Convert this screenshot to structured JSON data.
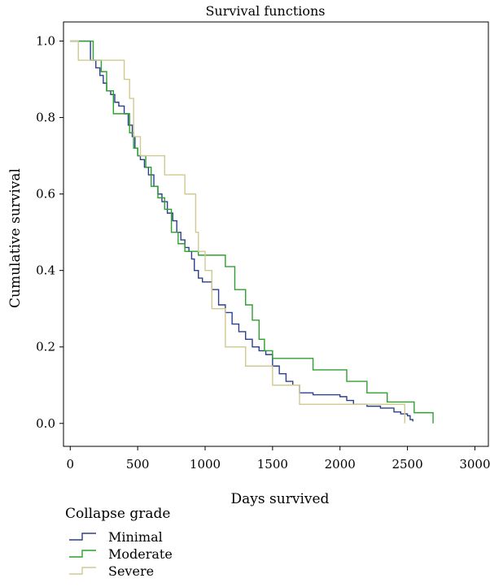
{
  "chart_data": {
    "type": "line",
    "step": true,
    "title": "Survival functions",
    "xlabel": "Days survived",
    "ylabel": "Cumulative survival",
    "xlim": [
      -50,
      3100
    ],
    "ylim": [
      -0.06,
      1.05
    ],
    "xticks": [
      0,
      500,
      1000,
      1500,
      2000,
      2500,
      3000
    ],
    "yticks": [
      0.0,
      0.2,
      0.4,
      0.6,
      0.8,
      1.0
    ],
    "xtick_labels": [
      "0",
      "500",
      "1000",
      "1500",
      "2000",
      "2500",
      "3000"
    ],
    "ytick_labels": [
      "0.0",
      "0.2",
      "0.4",
      "0.6",
      "0.8",
      "1.0"
    ],
    "grid": false,
    "legend": {
      "title": "Collapse grade",
      "position": "bottom-left"
    },
    "series": [
      {
        "name": "Minimal",
        "color": "#2b3f8c",
        "x": [
          0,
          150,
          190,
          220,
          245,
          270,
          300,
          330,
          360,
          400,
          430,
          460,
          480,
          500,
          520,
          550,
          580,
          620,
          650,
          680,
          720,
          760,
          790,
          820,
          850,
          880,
          900,
          920,
          950,
          980,
          1050,
          1100,
          1150,
          1200,
          1250,
          1300,
          1350,
          1400,
          1450,
          1500,
          1550,
          1600,
          1650,
          1700,
          1800,
          2000,
          2050,
          2100,
          2200,
          2300,
          2400,
          2450,
          2500,
          2520,
          2540
        ],
        "y": [
          1.0,
          0.95,
          0.93,
          0.91,
          0.89,
          0.87,
          0.86,
          0.84,
          0.83,
          0.81,
          0.78,
          0.75,
          0.72,
          0.7,
          0.69,
          0.67,
          0.65,
          0.62,
          0.6,
          0.58,
          0.55,
          0.53,
          0.5,
          0.48,
          0.46,
          0.45,
          0.43,
          0.4,
          0.38,
          0.37,
          0.35,
          0.31,
          0.29,
          0.26,
          0.24,
          0.22,
          0.2,
          0.19,
          0.18,
          0.15,
          0.13,
          0.11,
          0.1,
          0.08,
          0.075,
          0.07,
          0.06,
          0.05,
          0.045,
          0.04,
          0.03,
          0.025,
          0.02,
          0.01,
          0.005
        ]
      },
      {
        "name": "Moderate",
        "color": "#2ca02c",
        "x": [
          0,
          170,
          230,
          270,
          320,
          440,
          470,
          500,
          560,
          600,
          650,
          700,
          750,
          800,
          850,
          950,
          1150,
          1220,
          1300,
          1350,
          1400,
          1440,
          1500,
          1800,
          2050,
          2200,
          2350,
          2550,
          2690
        ],
        "y": [
          1.0,
          0.95,
          0.92,
          0.87,
          0.81,
          0.76,
          0.72,
          0.7,
          0.67,
          0.62,
          0.59,
          0.56,
          0.5,
          0.47,
          0.45,
          0.44,
          0.41,
          0.35,
          0.31,
          0.27,
          0.22,
          0.19,
          0.17,
          0.14,
          0.11,
          0.08,
          0.056,
          0.028,
          0.0
        ]
      },
      {
        "name": "Severe",
        "color": "#cfc98f",
        "x": [
          0,
          60,
          150,
          270,
          400,
          440,
          470,
          520,
          700,
          850,
          930,
          950,
          1000,
          1050,
          1150,
          1300,
          1450,
          1500,
          1700,
          2480
        ],
        "y": [
          1.0,
          0.95,
          0.95,
          0.95,
          0.9,
          0.85,
          0.75,
          0.7,
          0.65,
          0.6,
          0.5,
          0.45,
          0.4,
          0.3,
          0.2,
          0.15,
          0.15,
          0.1,
          0.05,
          0.0
        ]
      }
    ]
  }
}
